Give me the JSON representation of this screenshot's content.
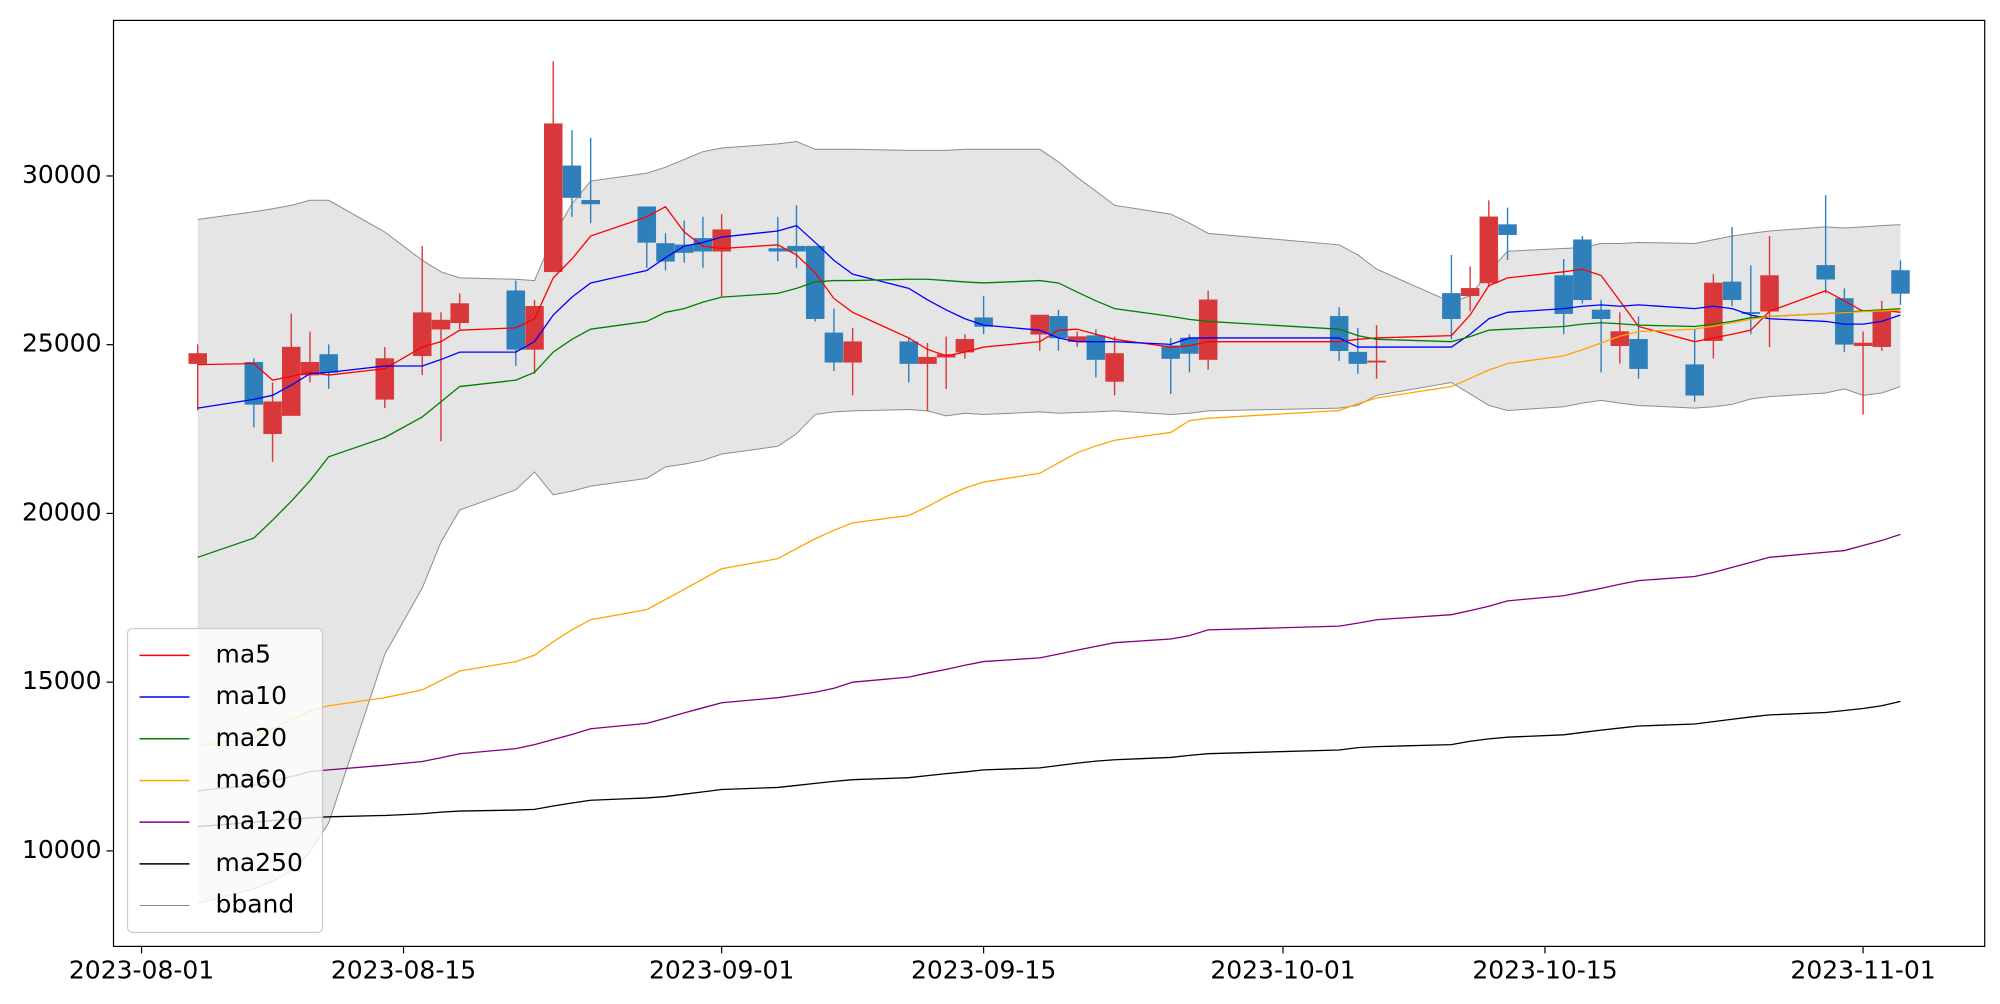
{
  "chart_data": {
    "type": "candlestick",
    "x": [
      "2023-08-04",
      "2023-08-07",
      "2023-08-08",
      "2023-08-09",
      "2023-08-10",
      "2023-08-11",
      "2023-08-14",
      "2023-08-16",
      "2023-08-17",
      "2023-08-18",
      "2023-08-21",
      "2023-08-22",
      "2023-08-23",
      "2023-08-24",
      "2023-08-25",
      "2023-08-28",
      "2023-08-29",
      "2023-08-30",
      "2023-08-31",
      "2023-09-01",
      "2023-09-04",
      "2023-09-05",
      "2023-09-06",
      "2023-09-07",
      "2023-09-08",
      "2023-09-11",
      "2023-09-12",
      "2023-09-13",
      "2023-09-14",
      "2023-09-15",
      "2023-09-18",
      "2023-09-19",
      "2023-09-20",
      "2023-09-21",
      "2023-09-22",
      "2023-09-25",
      "2023-09-26",
      "2023-09-27",
      "2023-10-04",
      "2023-10-05",
      "2023-10-06",
      "2023-10-10",
      "2023-10-11",
      "2023-10-12",
      "2023-10-13",
      "2023-10-16",
      "2023-10-17",
      "2023-10-18",
      "2023-10-19",
      "2023-10-20",
      "2023-10-23",
      "2023-10-24",
      "2023-10-25",
      "2023-10-26",
      "2023-10-27",
      "2023-10-30",
      "2023-10-31",
      "2023-11-01",
      "2023-11-02",
      "2023-11-03"
    ],
    "open": [
      24440,
      24480,
      22360,
      22900,
      24100,
      24710,
      23380,
      24670,
      25460,
      25650,
      26600,
      24860,
      27160,
      30300,
      29280,
      29090,
      28000,
      27960,
      28150,
      27770,
      27850,
      27920,
      27920,
      25350,
      24480,
      25090,
      24440,
      24630,
      24780,
      25800,
      25310,
      25840,
      25090,
      25270,
      23910,
      24970,
      25200,
      24560,
      25840,
      24780,
      24480,
      26520,
      26450,
      26830,
      28560,
      27050,
      28110,
      26030,
      24970,
      25160,
      24410,
      25120,
      26860,
      25960,
      25990,
      27350,
      26370,
      24970,
      24940,
      27200
    ],
    "high": [
      25010,
      24600,
      23880,
      25920,
      25390,
      25010,
      24930,
      27920,
      25960,
      26520,
      26900,
      26330,
      33400,
      31360,
      31130,
      29090,
      28300,
      28680,
      28790,
      28870,
      28790,
      29130,
      27920,
      26070,
      25500,
      25200,
      25050,
      25240,
      25310,
      26450,
      25880,
      26030,
      25390,
      25460,
      25240,
      25200,
      25310,
      26600,
      26110,
      25500,
      25580,
      27660,
      27320,
      29280,
      29060,
      27540,
      28220,
      26330,
      25960,
      25840,
      25460,
      27090,
      28490,
      27350,
      28220,
      29430,
      26670,
      25390,
      26300,
      27500
    ],
    "low": [
      23050,
      22550,
      21530,
      22900,
      23880,
      23690,
      23120,
      24100,
      22140,
      25460,
      24370,
      24140,
      27160,
      28790,
      28600,
      27280,
      27200,
      27430,
      27280,
      26410,
      27470,
      27280,
      25690,
      24220,
      23500,
      23880,
      23040,
      23690,
      24590,
      25310,
      24820,
      24820,
      24940,
      24030,
      23500,
      23540,
      24180,
      24260,
      24520,
      24140,
      23990,
      25160,
      25990,
      26710,
      27510,
      25310,
      26220,
      24180,
      24440,
      23990,
      23310,
      24590,
      26140,
      25310,
      24930,
      26520,
      24780,
      22930,
      24820,
      26180
    ],
    "close": [
      24740,
      23230,
      23310,
      24930,
      24480,
      24180,
      24590,
      25950,
      25730,
      26220,
      24860,
      26140,
      31550,
      29360,
      29170,
      28030,
      27470,
      27730,
      27770,
      28410,
      27770,
      27770,
      25770,
      24480,
      25090,
      24440,
      24630,
      24710,
      25160,
      25540,
      25880,
      25200,
      25240,
      24560,
      24740,
      24590,
      24740,
      26330,
      24820,
      24440,
      24520,
      25770,
      26670,
      28790,
      28260,
      25920,
      26330,
      25770,
      25390,
      24290,
      23500,
      26830,
      26330,
      25920,
      27050,
      26940,
      25010,
      25050,
      26030,
      26520
    ],
    "up_color": "#d9383a",
    "down_color": "#2f7fbb",
    "series": [
      {
        "name": "ma5",
        "color": "#ff0000",
        "values": [
          24410,
          24440,
          23950,
          24060,
          24180,
          24100,
          24290,
          24930,
          25090,
          25430,
          25500,
          25770,
          26980,
          27540,
          28220,
          28790,
          29090,
          28340,
          27920,
          27850,
          27960,
          27660,
          27130,
          26370,
          25960,
          25200,
          24860,
          24670,
          24780,
          24930,
          25090,
          25430,
          25460,
          25310,
          25160,
          24930,
          24970,
          25090,
          25090,
          25160,
          25200,
          25270,
          25880,
          26750,
          26980,
          27160,
          27240,
          27050,
          26300,
          25540,
          25090,
          25200,
          25310,
          25430,
          25990,
          26600,
          26300,
          25990,
          26030,
          25960
        ]
      },
      {
        "name": "ma10",
        "color": "#0000ff",
        "values": [
          23120,
          23380,
          23500,
          23800,
          24140,
          24180,
          24370,
          24370,
          24560,
          24780,
          24780,
          25090,
          25880,
          26410,
          26830,
          27200,
          27580,
          27920,
          28030,
          28190,
          28370,
          28530,
          28030,
          27500,
          27090,
          26670,
          26330,
          26030,
          25770,
          25580,
          25430,
          25200,
          25090,
          25090,
          25090,
          25010,
          25200,
          25200,
          25200,
          24930,
          24930,
          24930,
          25310,
          25770,
          25960,
          26070,
          26140,
          26180,
          26140,
          26180,
          26070,
          26140,
          26070,
          25880,
          25770,
          25690,
          25610,
          25610,
          25690,
          25880
        ]
      },
      {
        "name": "ma20",
        "color": "#008000",
        "values": [
          18700,
          19270,
          19800,
          20360,
          20970,
          21680,
          22250,
          22860,
          23310,
          23760,
          23950,
          24180,
          24780,
          25160,
          25460,
          25690,
          25960,
          26070,
          26260,
          26410,
          26520,
          26670,
          26860,
          26900,
          26900,
          26940,
          26940,
          26900,
          26860,
          26830,
          26900,
          26830,
          26560,
          26300,
          26070,
          25840,
          25750,
          25690,
          25460,
          25270,
          25160,
          25090,
          25240,
          25430,
          25460,
          25540,
          25610,
          25650,
          25620,
          25580,
          25540,
          25610,
          25690,
          25800,
          25840,
          25920,
          25960,
          26000,
          26030,
          26070
        ]
      },
      {
        "name": "ma60",
        "color": "#ffa500",
        "values": [
          13100,
          13350,
          13620,
          13900,
          14150,
          14300,
          14540,
          14770,
          15050,
          15330,
          15610,
          15800,
          16200,
          16550,
          16850,
          17150,
          17450,
          17750,
          18060,
          18360,
          18660,
          18960,
          19250,
          19500,
          19720,
          19940,
          20200,
          20500,
          20750,
          20930,
          21190,
          21500,
          21800,
          22000,
          22170,
          22400,
          22750,
          22820,
          23050,
          23250,
          23420,
          23760,
          24000,
          24250,
          24440,
          24670,
          24850,
          25050,
          25250,
          25390,
          25460,
          25550,
          25650,
          25750,
          25840,
          25920,
          25950,
          25980,
          26000,
          26030
        ]
      },
      {
        "name": "ma120",
        "color": "#800080",
        "values": [
          11780,
          11950,
          12080,
          12200,
          12350,
          12400,
          12540,
          12650,
          12760,
          12880,
          13030,
          13150,
          13300,
          13450,
          13620,
          13780,
          13930,
          14090,
          14240,
          14390,
          14540,
          14620,
          14700,
          14820,
          15000,
          15150,
          15270,
          15380,
          15500,
          15610,
          15720,
          15830,
          15950,
          16060,
          16170,
          16280,
          16380,
          16550,
          16660,
          16750,
          16850,
          17000,
          17120,
          17250,
          17410,
          17560,
          17670,
          17780,
          17900,
          18010,
          18130,
          18250,
          18400,
          18550,
          18700,
          18850,
          18900,
          19050,
          19200,
          19380
        ]
      },
      {
        "name": "ma250",
        "color": "#000000",
        "values": [
          10720,
          10850,
          10900,
          10940,
          10980,
          11010,
          11050,
          11100,
          11150,
          11180,
          11210,
          11230,
          11330,
          11420,
          11500,
          11570,
          11610,
          11680,
          11750,
          11820,
          11880,
          11940,
          12000,
          12060,
          12110,
          12170,
          12230,
          12290,
          12340,
          12400,
          12460,
          12530,
          12600,
          12660,
          12700,
          12770,
          12830,
          12880,
          12990,
          13060,
          13090,
          13150,
          13250,
          13320,
          13370,
          13440,
          13510,
          13580,
          13640,
          13700,
          13760,
          13830,
          13900,
          13970,
          14030,
          14100,
          14160,
          14220,
          14300,
          14430
        ]
      }
    ],
    "band": {
      "name": "bband",
      "color": "#8c8c8c",
      "fill": "#e5e5e5",
      "upper": [
        28710,
        28940,
        29030,
        29130,
        29280,
        29280,
        28340,
        27500,
        27160,
        26980,
        26940,
        26900,
        28220,
        29170,
        29850,
        30080,
        30260,
        30490,
        30720,
        30830,
        30950,
        31020,
        30790,
        30790,
        30790,
        30760,
        30760,
        30760,
        30790,
        30790,
        30790,
        30420,
        29960,
        29550,
        29130,
        28870,
        28600,
        28300,
        27960,
        27660,
        27240,
        26260,
        26450,
        27160,
        27770,
        27850,
        27880,
        28000,
        28000,
        28030,
        28000,
        28110,
        28220,
        28300,
        28370,
        28490,
        28460,
        28490,
        28530,
        28560
      ],
      "lower": [
        8450,
        8870,
        9100,
        9400,
        9970,
        10830,
        15830,
        17790,
        19150,
        20100,
        20700,
        21230,
        20550,
        20660,
        20810,
        21040,
        21380,
        21460,
        21570,
        21760,
        21990,
        22360,
        22930,
        23010,
        23040,
        23080,
        23040,
        22890,
        22970,
        22930,
        23010,
        22970,
        22990,
        23010,
        23040,
        22930,
        22970,
        23040,
        23120,
        23200,
        23500,
        23880,
        23540,
        23200,
        23050,
        23160,
        23270,
        23350,
        23270,
        23200,
        23120,
        23160,
        23230,
        23390,
        23460,
        23570,
        23690,
        23500,
        23570,
        23760
      ]
    },
    "xlim": [
      "2023-07-30T12:00",
      "2023-11-07T12:00"
    ],
    "xticks": [
      "2023-08-01",
      "2023-08-15",
      "2023-09-01",
      "2023-09-15",
      "2023-10-01",
      "2023-10-15",
      "2023-11-01"
    ],
    "ylim": [
      7170,
      34610
    ],
    "yticks": [
      10000,
      15000,
      20000,
      25000,
      30000
    ],
    "legend": "lower left"
  }
}
